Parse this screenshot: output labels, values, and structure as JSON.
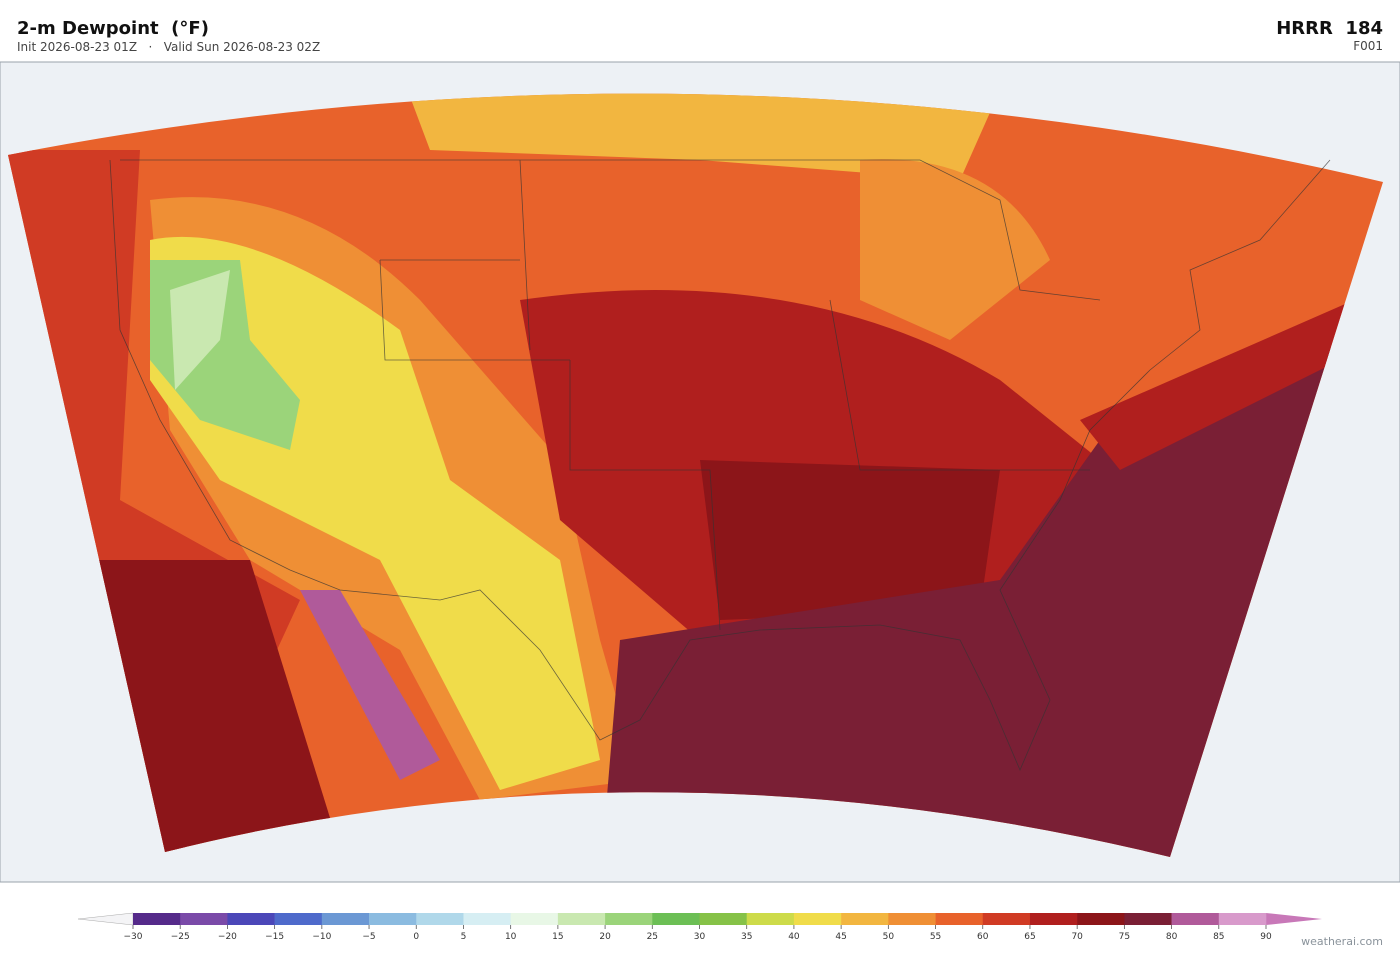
{
  "header": {
    "title": "2-m Dewpoint  (°F)",
    "subtitle": "Init 2026-08-23 01Z   ·   Valid Sun 2026-08-23 02Z",
    "model": "HRRR  184",
    "frame": "F001"
  },
  "colorbar": {
    "ticks": [
      {
        "value": -30,
        "label": "−30"
      },
      {
        "value": -25,
        "label": "−25"
      },
      {
        "value": -20,
        "label": "−20"
      },
      {
        "value": -15,
        "label": "−15"
      },
      {
        "value": -10,
        "label": "−10"
      },
      {
        "value": -5,
        "label": "−5"
      },
      0,
      5,
      10,
      15,
      20,
      25,
      30,
      35,
      40,
      45,
      50,
      55,
      60,
      65,
      70,
      75,
      80,
      85,
      90
    ],
    "colors": [
      "#552a8a",
      "#7a4aa8",
      "#4b47b8",
      "#4e6acb",
      "#6b98d4",
      "#8bbbe0",
      "#b0d8ea",
      "#d6eef3",
      "#e8f7e6",
      "#c9e8b0",
      "#9bd47a",
      "#6cbf55",
      "#86c248",
      "#cddb4a",
      "#f0dc4a",
      "#f2b640",
      "#ef8f35",
      "#e8622b",
      "#d03b24",
      "#b01f1e",
      "#8c1519",
      "#7a1f35",
      "#b05a9a",
      "#d89acb"
    ],
    "under_color": "#f4f4f6",
    "over_color": "#c878b8"
  },
  "watermark": "weatherai.com"
}
